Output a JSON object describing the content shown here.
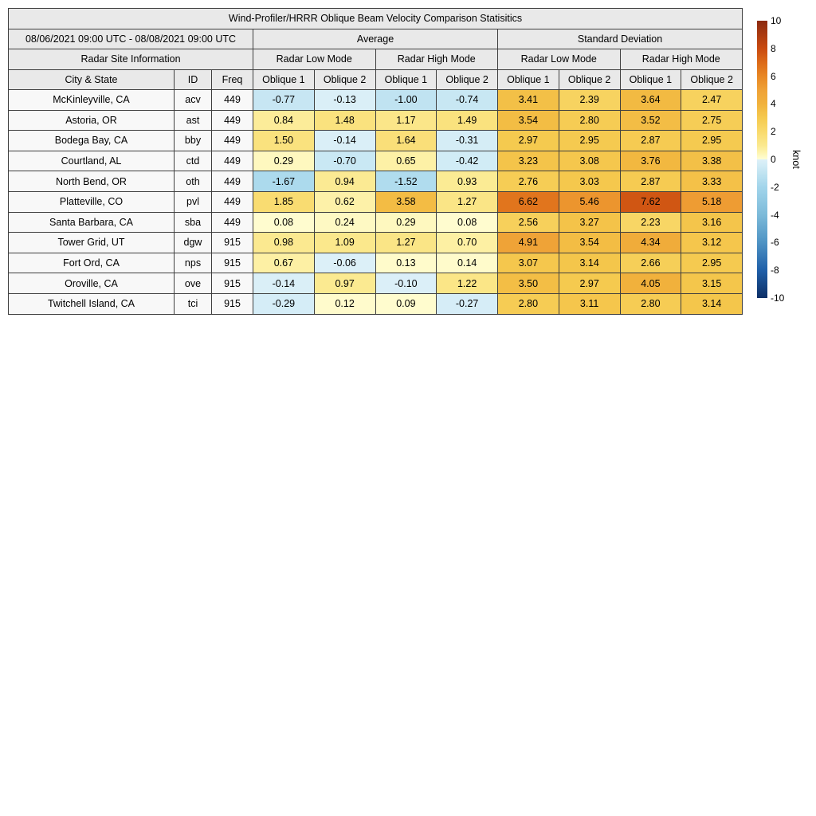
{
  "chart_data": {
    "type": "heatmap",
    "title": "Wind-Profiler/HRRR Oblique Beam Velocity Comparison Statisitics",
    "date_range": "08/06/2021 09:00 UTC - 08/08/2021 09:00 UTC",
    "section_headers": {
      "average": "Average",
      "std_dev": "Standard Deviation"
    },
    "group_headers": {
      "site_info": "Radar Site Information",
      "low_mode": "Radar Low Mode",
      "high_mode": "Radar High Mode"
    },
    "column_headers": {
      "city": "City & State",
      "id": "ID",
      "freq": "Freq",
      "oblique1": "Oblique 1",
      "oblique2": "Oblique 2"
    },
    "value_columns": [
      "avg_low_oblique1",
      "avg_low_oblique2",
      "avg_high_oblique1",
      "avg_high_oblique2",
      "std_low_oblique1",
      "std_low_oblique2",
      "std_high_oblique1",
      "std_high_oblique2"
    ],
    "rows": [
      {
        "city": "McKinleyville, CA",
        "id": "acv",
        "freq": "449",
        "values": [
          -0.77,
          -0.13,
          -1.0,
          -0.74,
          3.41,
          2.39,
          3.64,
          2.47
        ]
      },
      {
        "city": "Astoria, OR",
        "id": "ast",
        "freq": "449",
        "values": [
          0.84,
          1.48,
          1.17,
          1.49,
          3.54,
          2.8,
          3.52,
          2.75
        ]
      },
      {
        "city": "Bodega Bay, CA",
        "id": "bby",
        "freq": "449",
        "values": [
          1.5,
          -0.14,
          1.64,
          -0.31,
          2.97,
          2.95,
          2.87,
          2.95
        ]
      },
      {
        "city": "Courtland, AL",
        "id": "ctd",
        "freq": "449",
        "values": [
          0.29,
          -0.7,
          0.65,
          -0.42,
          3.23,
          3.08,
          3.76,
          3.38
        ]
      },
      {
        "city": "North Bend, OR",
        "id": "oth",
        "freq": "449",
        "values": [
          -1.67,
          0.94,
          -1.52,
          0.93,
          2.76,
          3.03,
          2.87,
          3.33
        ]
      },
      {
        "city": "Platteville, CO",
        "id": "pvl",
        "freq": "449",
        "values": [
          1.85,
          0.62,
          3.58,
          1.27,
          6.62,
          5.46,
          7.62,
          5.18
        ]
      },
      {
        "city": "Santa Barbara, CA",
        "id": "sba",
        "freq": "449",
        "values": [
          0.08,
          0.24,
          0.29,
          0.08,
          2.56,
          3.27,
          2.23,
          3.16
        ]
      },
      {
        "city": "Tower Grid, UT",
        "id": "dgw",
        "freq": "915",
        "values": [
          0.98,
          1.09,
          1.27,
          0.7,
          4.91,
          3.54,
          4.34,
          3.12
        ]
      },
      {
        "city": "Fort Ord, CA",
        "id": "nps",
        "freq": "915",
        "values": [
          0.67,
          -0.06,
          0.13,
          0.14,
          3.07,
          3.14,
          2.66,
          2.95
        ]
      },
      {
        "city": "Oroville, CA",
        "id": "ove",
        "freq": "915",
        "values": [
          -0.14,
          0.97,
          -0.1,
          1.22,
          3.5,
          2.97,
          4.05,
          3.15
        ]
      },
      {
        "city": "Twitchell Island, CA",
        "id": "tci",
        "freq": "915",
        "values": [
          -0.29,
          0.12,
          0.09,
          -0.27,
          2.8,
          3.11,
          2.8,
          3.14
        ]
      }
    ],
    "colorbar": {
      "label": "knot",
      "min": -10,
      "max": 10,
      "ticks": [
        10,
        8,
        6,
        4,
        2,
        0,
        -2,
        -4,
        -6,
        -8,
        -10
      ],
      "stops": [
        [
          -10,
          "#0D2F66"
        ],
        [
          -8,
          "#1F5FA8"
        ],
        [
          -6,
          "#4E93C4"
        ],
        [
          -4,
          "#7CBAD9"
        ],
        [
          -2,
          "#A2D5EB"
        ],
        [
          -1,
          "#C0E3F1"
        ],
        [
          -0.4,
          "#D2ECF6"
        ],
        [
          -0.02,
          "#DDF0F8"
        ],
        [
          0.02,
          "#FFFDD4"
        ],
        [
          0.4,
          "#FEF6B6"
        ],
        [
          1,
          "#FBE98F"
        ],
        [
          2,
          "#F9DA6C"
        ],
        [
          3,
          "#F5C94E"
        ],
        [
          4,
          "#F1B23C"
        ],
        [
          5,
          "#EFA136"
        ],
        [
          6,
          "#E88724"
        ],
        [
          7,
          "#DC6A18"
        ],
        [
          8,
          "#C94A10"
        ],
        [
          10,
          "#8C2A10"
        ]
      ]
    }
  },
  "styles": {
    "header_bg": "#E9E9E9",
    "site_cell_bg": "#F8F8F8",
    "border_color": "#3F3F3F",
    "page_bg": "#FFFFFF"
  }
}
